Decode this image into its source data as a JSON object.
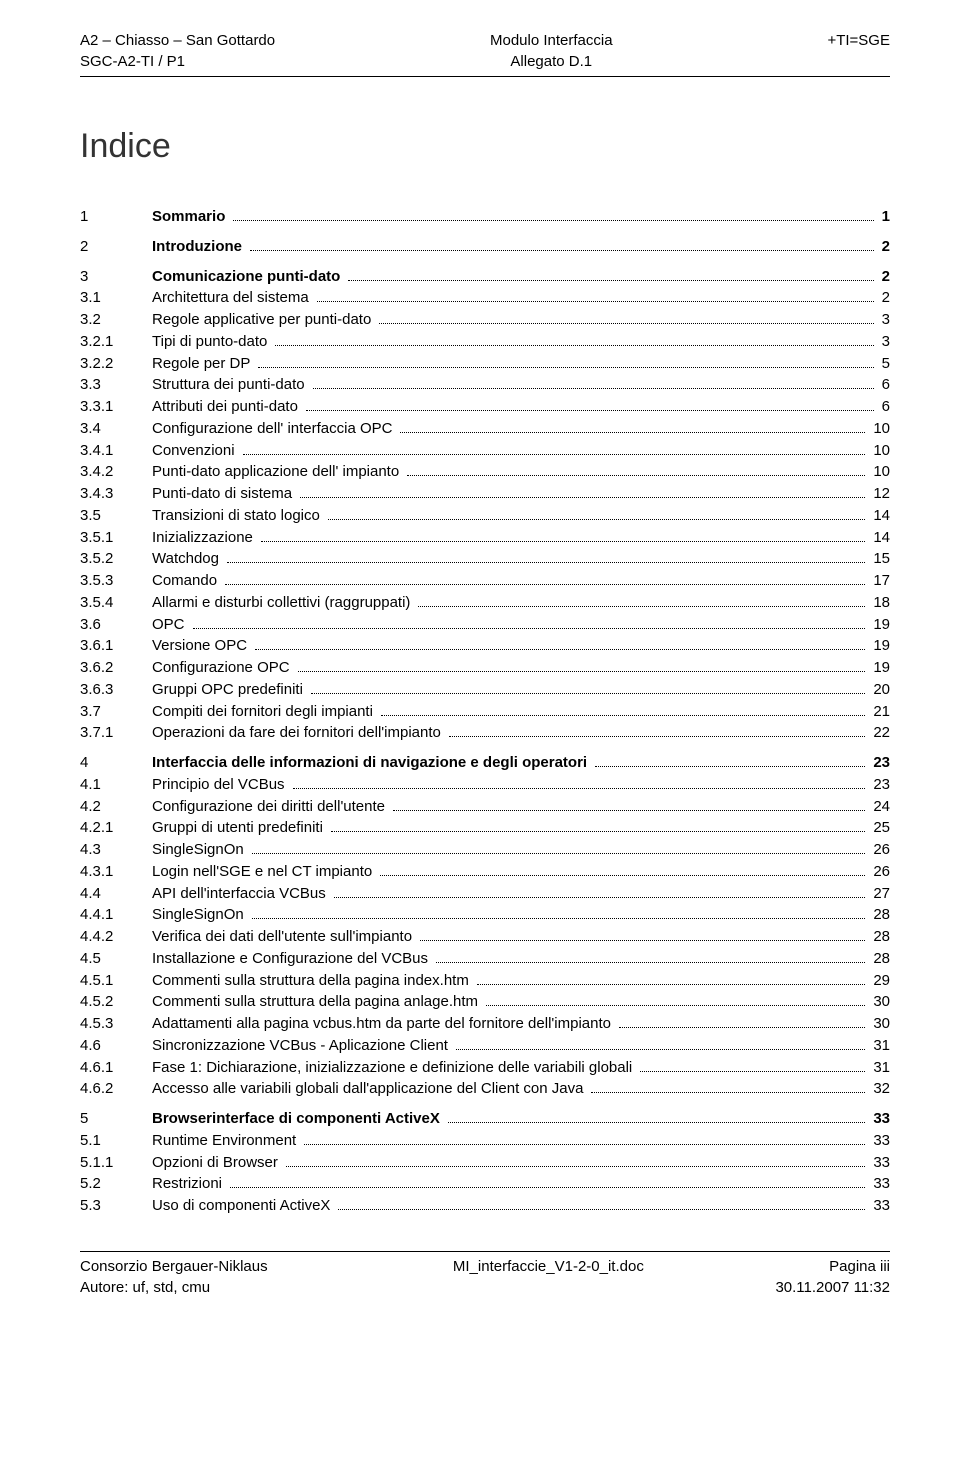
{
  "header": {
    "left1": "A2 – Chiasso – San Gottardo",
    "left2": "SGC-A2-TI / P1",
    "center1": "Modulo Interfaccia",
    "center2": "Allegato D.1",
    "right1": "+TI=SGE"
  },
  "title": "Indice",
  "toc": [
    {
      "lvl": 1,
      "num": "1",
      "title": "Sommario",
      "page": "1",
      "gapBefore": false
    },
    {
      "lvl": 1,
      "num": "2",
      "title": "Introduzione",
      "page": "2",
      "gapBefore": true
    },
    {
      "lvl": 1,
      "num": "3",
      "title": "Comunicazione punti-dato",
      "page": "2",
      "gapBefore": true
    },
    {
      "lvl": 2,
      "num": "3.1",
      "title": "Architettura del sistema",
      "page": "2",
      "gapBefore": false
    },
    {
      "lvl": 2,
      "num": "3.2",
      "title": "Regole applicative per punti-dato",
      "page": "3",
      "gapBefore": false
    },
    {
      "lvl": 3,
      "num": "3.2.1",
      "title": "Tipi di punto-dato",
      "page": "3",
      "gapBefore": false
    },
    {
      "lvl": 3,
      "num": "3.2.2",
      "title": "Regole per DP",
      "page": "5",
      "gapBefore": false
    },
    {
      "lvl": 2,
      "num": "3.3",
      "title": "Struttura dei punti-dato",
      "page": "6",
      "gapBefore": false
    },
    {
      "lvl": 3,
      "num": "3.3.1",
      "title": "Attributi dei punti-dato",
      "page": "6",
      "gapBefore": false
    },
    {
      "lvl": 2,
      "num": "3.4",
      "title": "Configurazione dell' interfaccia OPC",
      "page": "10",
      "gapBefore": false
    },
    {
      "lvl": 3,
      "num": "3.4.1",
      "title": "Convenzioni",
      "page": "10",
      "gapBefore": false
    },
    {
      "lvl": 3,
      "num": "3.4.2",
      "title": "Punti-dato applicazione dell' impianto",
      "page": "10",
      "gapBefore": false
    },
    {
      "lvl": 3,
      "num": "3.4.3",
      "title": "Punti-dato di sistema",
      "page": "12",
      "gapBefore": false
    },
    {
      "lvl": 2,
      "num": "3.5",
      "title": "Transizioni di stato logico",
      "page": "14",
      "gapBefore": false
    },
    {
      "lvl": 3,
      "num": "3.5.1",
      "title": "Inizializzazione",
      "page": "14",
      "gapBefore": false
    },
    {
      "lvl": 3,
      "num": "3.5.2",
      "title": "Watchdog",
      "page": "15",
      "gapBefore": false
    },
    {
      "lvl": 3,
      "num": "3.5.3",
      "title": "Comando",
      "page": "17",
      "gapBefore": false
    },
    {
      "lvl": 3,
      "num": "3.5.4",
      "title": "Allarmi e disturbi collettivi (raggruppati)",
      "page": "18",
      "gapBefore": false
    },
    {
      "lvl": 2,
      "num": "3.6",
      "title": "OPC",
      "page": "19",
      "gapBefore": false
    },
    {
      "lvl": 3,
      "num": "3.6.1",
      "title": "Versione OPC",
      "page": "19",
      "gapBefore": false
    },
    {
      "lvl": 3,
      "num": "3.6.2",
      "title": "Configurazione OPC",
      "page": "19",
      "gapBefore": false
    },
    {
      "lvl": 3,
      "num": "3.6.3",
      "title": "Gruppi OPC predefiniti",
      "page": "20",
      "gapBefore": false
    },
    {
      "lvl": 2,
      "num": "3.7",
      "title": "Compiti dei fornitori degli impianti",
      "page": "21",
      "gapBefore": false
    },
    {
      "lvl": 3,
      "num": "3.7.1",
      "title": "Operazioni da fare dei fornitori dell'impianto",
      "page": "22",
      "gapBefore": false
    },
    {
      "lvl": 1,
      "num": "4",
      "title": "Interfaccia delle informazioni di navigazione e degli operatori",
      "page": "23",
      "gapBefore": true
    },
    {
      "lvl": 2,
      "num": "4.1",
      "title": "Principio del VCBus",
      "page": "23",
      "gapBefore": false
    },
    {
      "lvl": 2,
      "num": "4.2",
      "title": "Configurazione dei diritti dell'utente",
      "page": "24",
      "gapBefore": false
    },
    {
      "lvl": 3,
      "num": "4.2.1",
      "title": "Gruppi di utenti predefiniti",
      "page": "25",
      "gapBefore": false
    },
    {
      "lvl": 2,
      "num": "4.3",
      "title": "SingleSignOn",
      "page": "26",
      "gapBefore": false
    },
    {
      "lvl": 3,
      "num": "4.3.1",
      "title": "Login nell'SGE e nel CT impianto",
      "page": "26",
      "gapBefore": false
    },
    {
      "lvl": 2,
      "num": "4.4",
      "title": "API dell'interfaccia VCBus",
      "page": "27",
      "gapBefore": false
    },
    {
      "lvl": 3,
      "num": "4.4.1",
      "title": "SingleSignOn",
      "page": "28",
      "gapBefore": false
    },
    {
      "lvl": 3,
      "num": "4.4.2",
      "title": "Verifica dei dati dell'utente sull'impianto",
      "page": "28",
      "gapBefore": false
    },
    {
      "lvl": 2,
      "num": "4.5",
      "title": "Installazione e Configurazione del VCBus",
      "page": "28",
      "gapBefore": false
    },
    {
      "lvl": 3,
      "num": "4.5.1",
      "title": "Commenti sulla struttura della pagina index.htm",
      "page": "29",
      "gapBefore": false
    },
    {
      "lvl": 3,
      "num": "4.5.2",
      "title": "Commenti sulla struttura della pagina anlage.htm",
      "page": "30",
      "gapBefore": false
    },
    {
      "lvl": 3,
      "num": "4.5.3",
      "title": "Adattamenti alla pagina vcbus.htm da parte del fornitore dell'impianto",
      "page": "30",
      "gapBefore": false
    },
    {
      "lvl": 2,
      "num": "4.6",
      "title": "Sincronizzazione VCBus - Aplicazione Client",
      "page": "31",
      "gapBefore": false
    },
    {
      "lvl": 3,
      "num": "4.6.1",
      "title": "Fase 1: Dichiarazione, inizializzazione e definizione delle variabili globali",
      "page": "31",
      "gapBefore": false
    },
    {
      "lvl": 3,
      "num": "4.6.2",
      "title": "Accesso alle variabili globali dall'applicazione del Client con Java",
      "page": "32",
      "gapBefore": false
    },
    {
      "lvl": 1,
      "num": "5",
      "title": "Browserinterface di componenti ActiveX",
      "page": "33",
      "gapBefore": true
    },
    {
      "lvl": 2,
      "num": "5.1",
      "title": "Runtime Environment",
      "page": "33",
      "gapBefore": false
    },
    {
      "lvl": 3,
      "num": "5.1.1",
      "title": "Opzioni di Browser",
      "page": "33",
      "gapBefore": false
    },
    {
      "lvl": 2,
      "num": "5.2",
      "title": "Restrizioni",
      "page": "33",
      "gapBefore": false
    },
    {
      "lvl": 2,
      "num": "5.3",
      "title": "Uso di componenti ActiveX",
      "page": "33",
      "gapBefore": false
    }
  ],
  "footer": {
    "left1": "Consorzio Bergauer-Niklaus",
    "left2": "Autore: uf, std, cmu",
    "center1": "MI_interfaccie_V1-2-0_it.doc",
    "right1": "Pagina iii",
    "right2": "30.11.2007 11:32"
  }
}
